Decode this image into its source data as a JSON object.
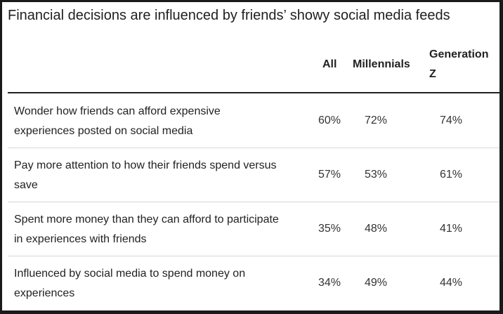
{
  "chart_data": {
    "type": "table",
    "title": "Financial decisions are influenced by friends’ showy social media feeds",
    "columns": [
      "All",
      "Millennials",
      "Generation Z"
    ],
    "rows": [
      {
        "label": "Wonder how friends can afford expensive experiences posted on social media",
        "values": [
          "60%",
          "72%",
          "74%"
        ]
      },
      {
        "label": "Pay more attention to how their friends spend versus save",
        "values": [
          "57%",
          "53%",
          "61%"
        ]
      },
      {
        "label": "Spent more money than they can afford to participate in experiences with friends",
        "values": [
          "35%",
          "48%",
          "41%"
        ]
      },
      {
        "label": "Influenced by social media to spend money on experiences",
        "values": [
          "34%",
          "49%",
          "44%"
        ]
      }
    ]
  }
}
